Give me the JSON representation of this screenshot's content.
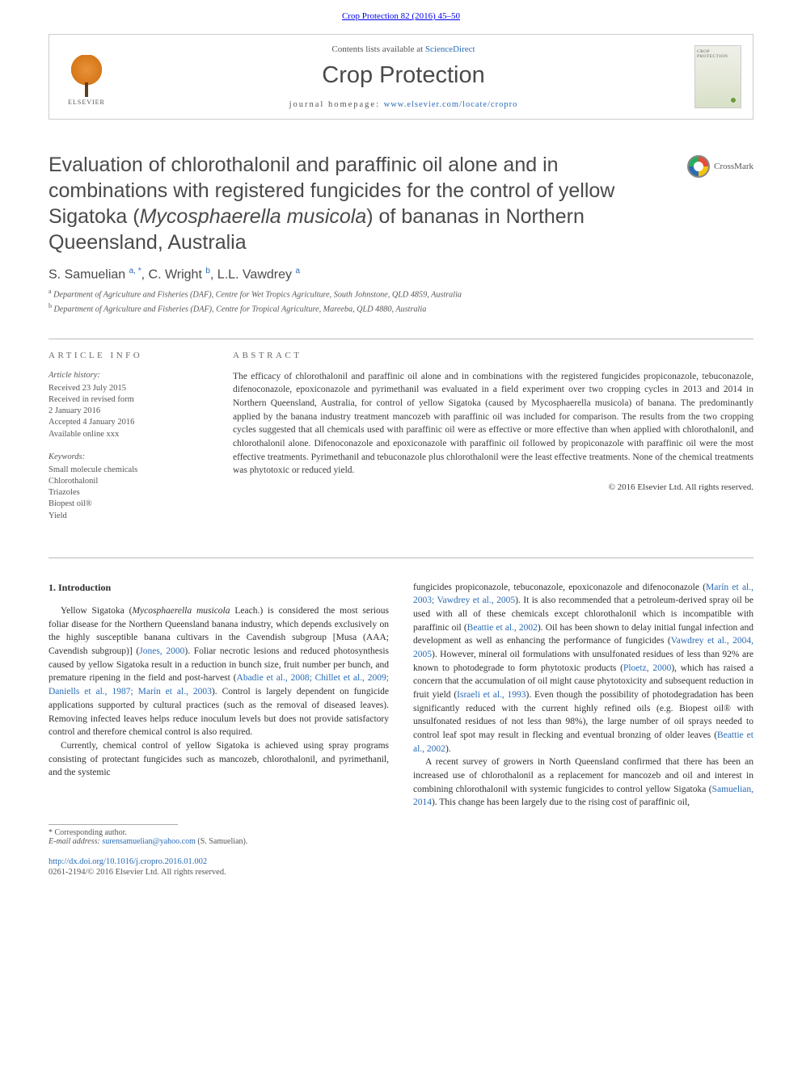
{
  "colors": {
    "link": "#2a6bb5",
    "text": "#3a3a3a",
    "muted": "#555555",
    "rule": "#bbbbbb",
    "elsevier_orange": "#e8923a",
    "background": "#ffffff"
  },
  "header": {
    "citation": "Crop Protection 82 (2016) 45–50",
    "contents_prefix": "Contents lists available at ",
    "contents_link": "ScienceDirect",
    "journal": "Crop Protection",
    "homepage_label": "journal homepage: ",
    "homepage_url": "www.elsevier.com/locate/cropro",
    "publisher": "ELSEVIER",
    "thumb_title": "CROP PROTECTION"
  },
  "crossmark": "CrossMark",
  "title_html": "Evaluation of chlorothalonil and paraffinic oil alone and in combinations with registered fungicides for the control of yellow Sigatoka (<em>Mycosphaerella musicola</em>) of bananas in Northern Queensland, Australia",
  "authors_html": "S. Samuelian <sup>a, *</sup>, C. Wright <sup>b</sup>, L.L. Vawdrey <sup>a</sup>",
  "affiliations": [
    {
      "key": "a",
      "text": "Department of Agriculture and Fisheries (DAF), Centre for Wet Tropics Agriculture, South Johnstone, QLD 4859, Australia"
    },
    {
      "key": "b",
      "text": "Department of Agriculture and Fisheries (DAF), Centre for Tropical Agriculture, Mareeba, QLD 4880, Australia"
    }
  ],
  "article_info": {
    "header": "ARTICLE INFO",
    "history_label": "Article history:",
    "history": [
      "Received 23 July 2015",
      "Received in revised form",
      "2 January 2016",
      "Accepted 4 January 2016",
      "Available online xxx"
    ],
    "keywords_label": "Keywords:",
    "keywords": [
      "Small molecule chemicals",
      "Chlorothalonil",
      "Triazoles",
      "Biopest oil®",
      "Yield"
    ]
  },
  "abstract": {
    "header": "ABSTRACT",
    "text": "The efficacy of chlorothalonil and paraffinic oil alone and in combinations with the registered fungicides propiconazole, tebuconazole, difenoconazole, epoxiconazole and pyrimethanil was evaluated in a field experiment over two cropping cycles in 2013 and 2014 in Northern Queensland, Australia, for control of yellow Sigatoka (caused by Mycosphaerella musicola) of banana. The predominantly applied by the banana industry treatment mancozeb with paraffinic oil was included for comparison. The results from the two cropping cycles suggested that all chemicals used with paraffinic oil were as effective or more effective than when applied with chlorothalonil, and chlorothalonil alone. Difenoconazole and epoxiconazole with paraffinic oil followed by propiconazole with paraffinic oil were the most effective treatments. Pyrimethanil and tebuconazole plus chlorothalonil were the least effective treatments. None of the chemical treatments was phytotoxic or reduced yield.",
    "copyright": "© 2016 Elsevier Ltd. All rights reserved."
  },
  "intro": {
    "heading": "1. Introduction",
    "col1": [
      {
        "indent": true,
        "html": "Yellow Sigatoka (<em>Mycosphaerella musicola</em> Leach.) is considered the most serious foliar disease for the Northern Queensland banana industry, which depends exclusively on the highly susceptible banana cultivars in the Cavendish subgroup [Musa (AAA; Cavendish subgroup)] (<span class=\"cite\">Jones, 2000</span>). Foliar necrotic lesions and reduced photosynthesis caused by yellow Sigatoka result in a reduction in bunch size, fruit number per bunch, and premature ripening in the field and post-harvest (<span class=\"cite\">Abadie et al., 2008; Chillet et al., 2009; Daniells et al., 1987; Marín et al., 2003</span>). Control is largely dependent on fungicide applications supported by cultural practices (such as the removal of diseased leaves). Removing infected leaves helps reduce inoculum levels but does not provide satisfactory control and therefore chemical control is also required."
      },
      {
        "indent": true,
        "html": "Currently, chemical control of yellow Sigatoka is achieved using spray programs consisting of protectant fungicides such as mancozeb, chlorothalonil, and pyrimethanil, and the systemic"
      }
    ],
    "col2": [
      {
        "indent": false,
        "html": "fungicides propiconazole, tebuconazole, epoxiconazole and difenoconazole (<span class=\"cite\">Marín et al., 2003; Vawdrey et al., 2005</span>). It is also recommended that a petroleum-derived spray oil be used with all of these chemicals except chlorothalonil which is incompatible with paraffinic oil (<span class=\"cite\">Beattie et al., 2002</span>). Oil has been shown to delay initial fungal infection and development as well as enhancing the performance of fungicides (<span class=\"cite\">Vawdrey et al., 2004, 2005</span>). However, mineral oil formulations with unsulfonated residues of less than 92% are known to photodegrade to form phytotoxic products (<span class=\"cite\">Ploetz, 2000</span>), which has raised a concern that the accumulation of oil might cause phytotoxicity and subsequent reduction in fruit yield (<span class=\"cite\">Israeli et al., 1993</span>). Even though the possibility of photodegradation has been significantly reduced with the current highly refined oils (e.g. Biopest oil® with unsulfonated residues of not less than 98%), the large number of oil sprays needed to control leaf spot may result in flecking and eventual bronzing of older leaves (<span class=\"cite\">Beattie et al., 2002</span>)."
      },
      {
        "indent": true,
        "html": "A recent survey of growers in North Queensland confirmed that there has been an increased use of chlorothalonil as a replacement for mancozeb and oil and interest in combining chlorothalonil with systemic fungicides to control yellow Sigatoka (<span class=\"cite\">Samuelian, 2014</span>). This change has been largely due to the rising cost of paraffinic oil,"
      }
    ]
  },
  "footnote": {
    "corresponding": "* Corresponding author.",
    "email_label": "E-mail address: ",
    "email": "surensamuelian@yahoo.com",
    "email_person": " (S. Samuelian)."
  },
  "doi": "http://dx.doi.org/10.1016/j.cropro.2016.01.002",
  "issn_line": "0261-2194/© 2016 Elsevier Ltd. All rights reserved."
}
